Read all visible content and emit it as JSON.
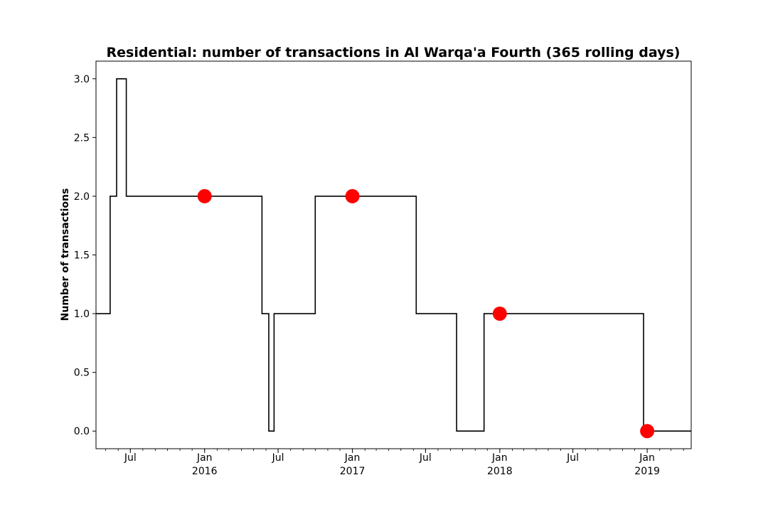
{
  "chart_data": {
    "type": "line",
    "title": "Residential: number of transactions in Al Warqa'a Fourth (365 rolling days)",
    "xlabel": "",
    "ylabel": "Number of transactions",
    "xlim": [
      "2015-04-07",
      "2019-04-20"
    ],
    "ylim": [
      -0.15,
      3.15
    ],
    "yticks": [
      0.0,
      0.5,
      1.0,
      1.5,
      2.0,
      2.5,
      3.0
    ],
    "ytick_labels": [
      "0.0",
      "0.5",
      "1.0",
      "1.5",
      "2.0",
      "2.5",
      "3.0"
    ],
    "xticks": [
      {
        "date": "2015-07-01",
        "label": "Jul"
      },
      {
        "date": "2016-01-01",
        "label": "Jan\n2016"
      },
      {
        "date": "2016-07-01",
        "label": "Jul"
      },
      {
        "date": "2017-01-01",
        "label": "Jan\n2017"
      },
      {
        "date": "2017-07-01",
        "label": "Jul"
      },
      {
        "date": "2018-01-01",
        "label": "Jan\n2018"
      },
      {
        "date": "2018-07-01",
        "label": "Jul"
      },
      {
        "date": "2019-01-01",
        "label": "Jan\n2019"
      }
    ],
    "grid": false,
    "series": [
      {
        "style": "step",
        "color": "#000000",
        "points": [
          {
            "x": "2015-04-07",
            "y": 1
          },
          {
            "x": "2015-05-12",
            "y": 2
          },
          {
            "x": "2015-05-28",
            "y": 3
          },
          {
            "x": "2015-06-21",
            "y": 2
          },
          {
            "x": "2016-05-22",
            "y": 1
          },
          {
            "x": "2016-06-08",
            "y": 0
          },
          {
            "x": "2016-06-21",
            "y": 1
          },
          {
            "x": "2016-10-01",
            "y": 2
          },
          {
            "x": "2017-06-08",
            "y": 1
          },
          {
            "x": "2017-09-16",
            "y": 0
          },
          {
            "x": "2017-11-23",
            "y": 1
          },
          {
            "x": "2018-12-23",
            "y": 0
          },
          {
            "x": "2019-04-20",
            "y": 0
          }
        ]
      },
      {
        "style": "markers",
        "color": "#ff0000",
        "points": [
          {
            "x": "2016-01-01",
            "y": 2
          },
          {
            "x": "2017-01-01",
            "y": 2
          },
          {
            "x": "2018-01-01",
            "y": 1
          },
          {
            "x": "2019-01-01",
            "y": 0
          }
        ]
      }
    ]
  }
}
